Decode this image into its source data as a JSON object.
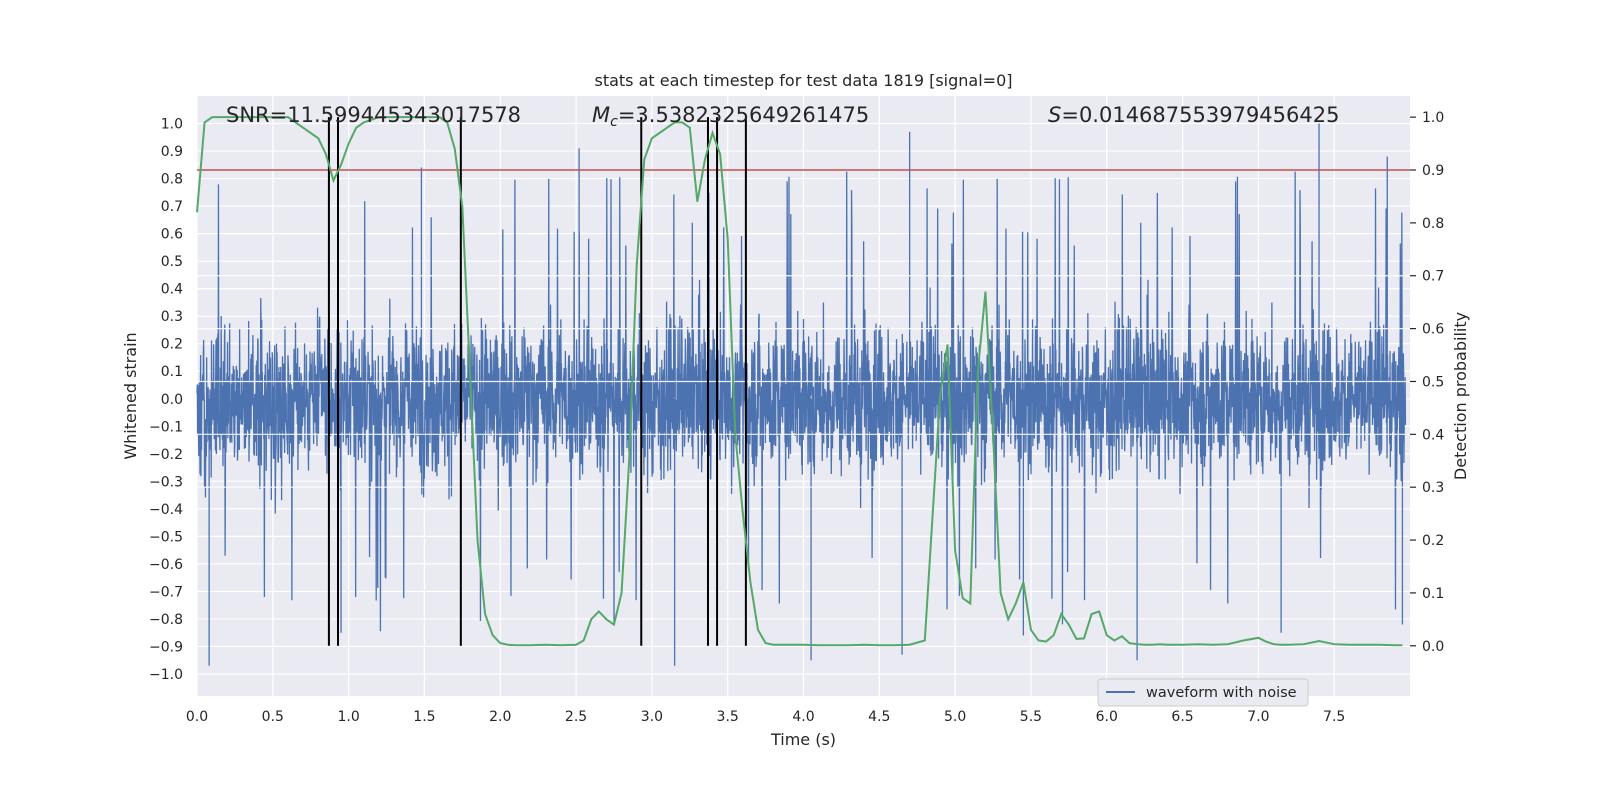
{
  "chart_data": {
    "type": "line",
    "title": "stats at each timestep for test data 1819 [signal=0]",
    "xlabel": "Time (s)",
    "ylabel_left": "Whitened strain",
    "ylabel_right": "Detection probability",
    "xlim": [
      0.0,
      8.0
    ],
    "ylim_left": [
      -1.08,
      1.1
    ],
    "ylim_right": [
      -0.095,
      1.04
    ],
    "x_ticks": [
      0.0,
      0.5,
      1.0,
      1.5,
      2.0,
      2.5,
      3.0,
      3.5,
      4.0,
      4.5,
      5.0,
      5.5,
      6.0,
      6.5,
      7.0,
      7.5
    ],
    "x_tick_labels": [
      "0.0",
      "0.5",
      "1.0",
      "1.5",
      "2.0",
      "2.5",
      "3.0",
      "3.5",
      "4.0",
      "4.5",
      "5.0",
      "5.5",
      "6.0",
      "6.5",
      "7.0",
      "7.5"
    ],
    "y_left_ticks": [
      -1.0,
      -0.9,
      -0.8,
      -0.7,
      -0.6,
      -0.5,
      -0.4,
      -0.3,
      -0.2,
      -0.1,
      0.0,
      0.1,
      0.2,
      0.3,
      0.4,
      0.5,
      0.6,
      0.7,
      0.8,
      0.9,
      1.0
    ],
    "y_left_tick_labels": [
      "−1.0",
      "−0.9",
      "−0.8",
      "−0.7",
      "−0.6",
      "−0.5",
      "−0.4",
      "−0.3",
      "−0.2",
      "−0.1",
      "0.0",
      "0.1",
      "0.2",
      "0.3",
      "0.4",
      "0.5",
      "0.6",
      "0.7",
      "0.8",
      "0.9",
      "1.0"
    ],
    "y_right_ticks": [
      0.0,
      0.1,
      0.2,
      0.3,
      0.4,
      0.5,
      0.6,
      0.7,
      0.8,
      0.9,
      1.0
    ],
    "y_right_tick_labels": [
      "0.0",
      "0.1",
      "0.2",
      "0.3",
      "0.4",
      "0.5",
      "0.6",
      "0.7",
      "0.8",
      "0.9",
      "1.0"
    ],
    "annotations": {
      "snr": "SNR=11.599445343017578",
      "mc_symbol": "M",
      "mc_sub": "c",
      "mc_value": "=3.5382325649261475",
      "s_symbol": "S",
      "s_value": "=0.014687553979456425"
    },
    "threshold": {
      "value": 0.9,
      "axis": "right",
      "color": "#c44e52"
    },
    "vertical_markers": [
      0.87,
      0.93,
      1.74,
      2.93,
      3.37,
      3.43,
      3.62
    ],
    "series": [
      {
        "name": "waveform with noise",
        "axis": "left",
        "color": "#4c72b0",
        "style": "dense noise signal, amplitude mostly within ±0.5 with spikes to ±1.0",
        "peak_spikes": [
          {
            "x": 0.08,
            "y": -0.97
          },
          {
            "x": 1.48,
            "y": 0.84
          },
          {
            "x": 2.52,
            "y": 0.91
          },
          {
            "x": 3.15,
            "y": -0.97
          },
          {
            "x": 4.05,
            "y": -0.95
          },
          {
            "x": 4.65,
            "y": -0.93
          },
          {
            "x": 4.7,
            "y": 0.97
          },
          {
            "x": 6.2,
            "y": -0.95
          },
          {
            "x": 7.4,
            "y": 1.0
          },
          {
            "x": 7.85,
            "y": 0.88
          },
          {
            "x": 7.95,
            "y": -0.82
          },
          {
            "x": 0.95,
            "y": -0.85
          },
          {
            "x": 5.45,
            "y": -0.86
          },
          {
            "x": 7.15,
            "y": -0.85
          }
        ],
        "show_in_legend": true
      },
      {
        "name": "detection probability",
        "axis": "right",
        "color": "#55a868",
        "show_in_legend": false,
        "x": [
          0.0,
          0.05,
          0.1,
          0.2,
          0.3,
          0.4,
          0.5,
          0.6,
          0.7,
          0.8,
          0.85,
          0.9,
          0.95,
          1.0,
          1.05,
          1.1,
          1.2,
          1.3,
          1.4,
          1.5,
          1.6,
          1.65,
          1.7,
          1.75,
          1.8,
          1.85,
          1.9,
          1.95,
          2.0,
          2.05,
          2.1,
          2.2,
          2.3,
          2.4,
          2.5,
          2.55,
          2.6,
          2.65,
          2.7,
          2.75,
          2.8,
          2.85,
          2.9,
          2.95,
          3.0,
          3.05,
          3.1,
          3.15,
          3.2,
          3.25,
          3.3,
          3.35,
          3.4,
          3.45,
          3.5,
          3.55,
          3.6,
          3.65,
          3.7,
          3.75,
          3.8,
          3.85,
          3.9,
          3.95,
          4.0,
          4.1,
          4.2,
          4.3,
          4.4,
          4.5,
          4.6,
          4.7,
          4.8,
          4.9,
          4.95,
          5.0,
          5.05,
          5.1,
          5.15,
          5.2,
          5.25,
          5.3,
          5.35,
          5.4,
          5.45,
          5.5,
          5.55,
          5.6,
          5.65,
          5.7,
          5.75,
          5.8,
          5.85,
          5.9,
          5.95,
          6.0,
          6.05,
          6.1,
          6.15,
          6.2,
          6.25,
          6.3,
          6.35,
          6.4,
          6.5,
          6.6,
          6.7,
          6.8,
          6.9,
          7.0,
          7.05,
          7.1,
          7.15,
          7.2,
          7.3,
          7.4,
          7.5,
          7.6,
          7.7,
          7.8,
          7.9,
          7.95
        ],
        "y": [
          0.82,
          0.99,
          1.0,
          1.0,
          1.0,
          1.0,
          1.0,
          1.0,
          0.98,
          0.96,
          0.93,
          0.88,
          0.91,
          0.95,
          0.98,
          0.99,
          1.0,
          1.0,
          1.0,
          1.0,
          1.0,
          0.99,
          0.94,
          0.83,
          0.52,
          0.2,
          0.06,
          0.02,
          0.005,
          0.002,
          0.001,
          0.001,
          0.002,
          0.001,
          0.002,
          0.01,
          0.05,
          0.065,
          0.05,
          0.04,
          0.1,
          0.35,
          0.72,
          0.92,
          0.96,
          0.97,
          0.98,
          0.99,
          0.99,
          0.98,
          0.84,
          0.92,
          0.97,
          0.93,
          0.77,
          0.4,
          0.25,
          0.12,
          0.03,
          0.005,
          0.002,
          0.002,
          0.002,
          0.002,
          0.002,
          0.001,
          0.001,
          0.001,
          0.002,
          0.001,
          0.001,
          0.002,
          0.01,
          0.47,
          0.57,
          0.18,
          0.09,
          0.08,
          0.52,
          0.67,
          0.4,
          0.1,
          0.05,
          0.08,
          0.12,
          0.03,
          0.01,
          0.008,
          0.02,
          0.06,
          0.04,
          0.013,
          0.014,
          0.06,
          0.065,
          0.02,
          0.01,
          0.018,
          0.005,
          0.003,
          0.002,
          0.002,
          0.003,
          0.002,
          0.002,
          0.003,
          0.002,
          0.003,
          0.01,
          0.015,
          0.008,
          0.003,
          0.002,
          0.002,
          0.003,
          0.009,
          0.003,
          0.002,
          0.002,
          0.002,
          0.001,
          0.001
        ]
      }
    ],
    "legend": {
      "placement": "lower-right",
      "entries": [
        "waveform with noise"
      ]
    }
  },
  "colors": {
    "plot_bg": "#eaeaf2",
    "grid": "#ffffff",
    "waveform": "#4c72b0",
    "probability": "#55a868",
    "threshold": "#c44e52",
    "marker": "#000000"
  }
}
